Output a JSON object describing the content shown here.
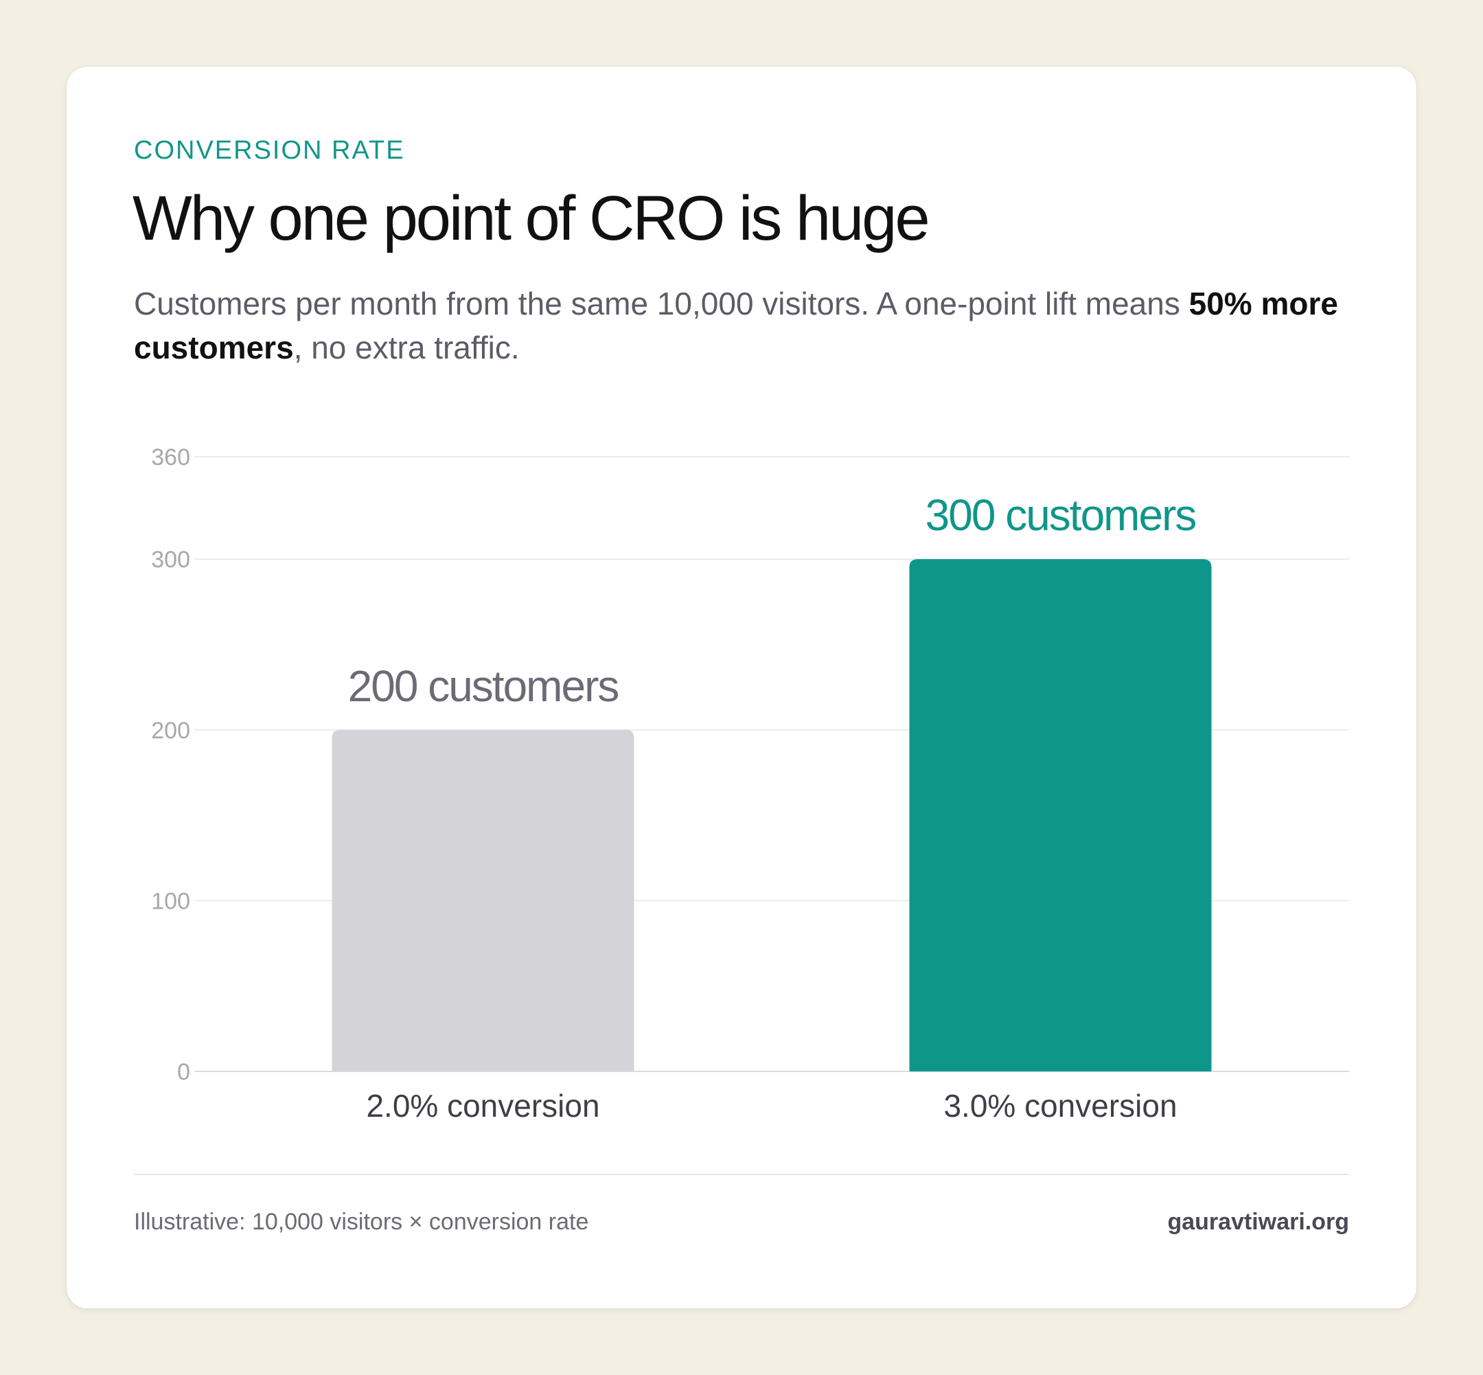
{
  "eyebrow": "CONVERSION RATE",
  "title": "Why one point of CRO is huge",
  "subtitle": {
    "lead": "Customers per month from the same 10,000 visitors. A one-point lift means ",
    "emphasis": "50% more customers",
    "tail": ", no extra traffic."
  },
  "chart_data": {
    "type": "bar",
    "categories": [
      "2.0% conversion",
      "3.0% conversion"
    ],
    "values": [
      200,
      300
    ],
    "data_labels": [
      "200 customers",
      "300 customers"
    ],
    "bar_colors": [
      "#d4d4d8",
      "#0f968a"
    ],
    "label_colors": [
      "#6b6b75",
      "#0f968a"
    ],
    "ylim": [
      0,
      360
    ],
    "yticks": [
      0,
      100,
      200,
      300,
      360
    ],
    "grid": true,
    "xlabel": "",
    "ylabel": ""
  },
  "footer": {
    "note": "Illustrative: 10,000 visitors × conversion rate",
    "brand": "gauravtiwari.org"
  }
}
